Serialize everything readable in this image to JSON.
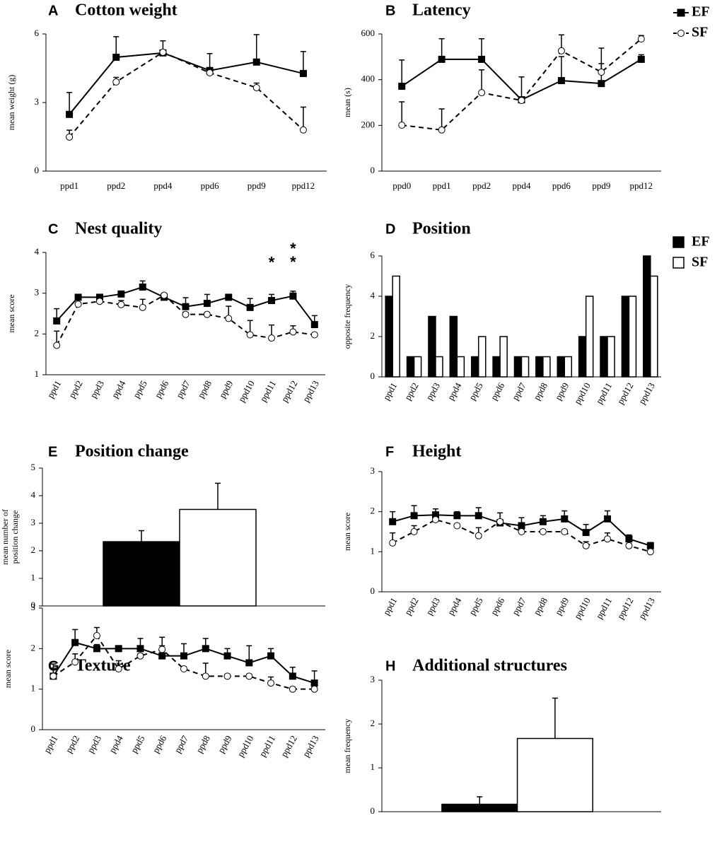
{
  "chart_data": [
    {
      "type": "line",
      "label": "A",
      "title": "Cotton weight",
      "y_label": "mean weight (g)",
      "categories": [
        "ppd1",
        "ppd2",
        "ppd4",
        "ppd6",
        "ppd9",
        "ppd12"
      ],
      "ylim": [
        0,
        6
      ],
      "yticks": [
        0,
        3,
        6
      ],
      "series": [
        {
          "name": "EF",
          "color": "#000000",
          "fill": "#000000",
          "marker": "square",
          "line_style": "solid",
          "values": [
            2.48,
            4.98,
            5.17,
            4.4,
            4.77,
            4.27
          ],
          "errors": [
            0.96,
            0.9,
            0.53,
            0.74,
            1.2,
            0.96
          ]
        },
        {
          "name": "SF",
          "color": "#000000",
          "fill": "#ffffff",
          "marker": "circle",
          "line_style": "dashed",
          "values": [
            1.49,
            3.9,
            5.2,
            4.3,
            3.65,
            1.8
          ],
          "errors": [
            0.3,
            0.2,
            0.05,
            0.05,
            0.2,
            1.0
          ]
        }
      ]
    },
    {
      "type": "line",
      "label": "B",
      "title": "Latency",
      "y_label": "mean (s)",
      "legend": "right",
      "categories": [
        "ppd0",
        "ppd1",
        "ppd2",
        "ppd4",
        "ppd6",
        "ppd9",
        "ppd12"
      ],
      "ylim": [
        0,
        600
      ],
      "yticks": [
        0,
        200,
        400,
        600
      ],
      "series": [
        {
          "name": "EF",
          "color": "#000000",
          "fill": "#000000",
          "marker": "square",
          "line_style": "solid",
          "values": [
            371,
            489,
            489,
            312,
            396,
            383,
            489
          ],
          "errors": [
            115,
            90,
            90,
            100,
            105,
            87,
            20
          ]
        },
        {
          "name": "SF",
          "color": "#000000",
          "fill": "#ffffff",
          "marker": "circle",
          "line_style": "dashed",
          "values": [
            201,
            180,
            343,
            309,
            526,
            433,
            578
          ],
          "errors": [
            102,
            92,
            100,
            10,
            70,
            105,
            15
          ]
        }
      ]
    },
    {
      "type": "line",
      "label": "C",
      "title": "Nest quality",
      "y_label": "mean score",
      "categories": [
        "ppd1",
        "ppd2",
        "ppd3",
        "ppd4",
        "ppd5",
        "ppd6",
        "ppd7",
        "ppd8",
        "ppd9",
        "ppd10",
        "ppd11",
        "ppd12",
        "ppd13"
      ],
      "ylim": [
        1,
        4
      ],
      "yticks": [
        1,
        2,
        3,
        4
      ],
      "annotations": [
        {
          "x": "ppd11",
          "text": "*"
        },
        {
          "x": "ppd12",
          "text": "**"
        }
      ],
      "series": [
        {
          "name": "EF",
          "color": "#000000",
          "fill": "#000000",
          "marker": "square",
          "line_style": "solid",
          "values": [
            2.32,
            2.9,
            2.9,
            2.98,
            3.15,
            2.9,
            2.67,
            2.75,
            2.9,
            2.65,
            2.82,
            2.93,
            2.23
          ],
          "errors": [
            0.3,
            0.05,
            0.05,
            0.05,
            0.15,
            0.05,
            0.22,
            0.22,
            0.05,
            0.22,
            0.15,
            0.12,
            0.22
          ]
        },
        {
          "name": "SF",
          "color": "#000000",
          "fill": "#ffffff",
          "marker": "circle",
          "line_style": "dashed",
          "values": [
            1.72,
            2.73,
            2.8,
            2.72,
            2.65,
            2.95,
            2.48,
            2.48,
            2.38,
            1.98,
            1.9,
            2.05,
            1.98
          ],
          "errors": [
            0.35,
            0.05,
            0.05,
            0.1,
            0.2,
            0.05,
            0.05,
            0.05,
            0.3,
            0.35,
            0.32,
            0.15,
            0.05
          ]
        }
      ]
    },
    {
      "type": "bar",
      "label": "D",
      "title": "Position",
      "y_label": "opposite frequency",
      "legend": "right",
      "categories": [
        "ppd1",
        "ppd2",
        "ppd3",
        "ppd4",
        "ppd5",
        "ppd6",
        "ppd7",
        "ppd8",
        "ppd9",
        "ppd10",
        "ppd11",
        "ppd12",
        "ppd13"
      ],
      "ylim": [
        0,
        6
      ],
      "yticks": [
        0,
        2,
        4,
        6
      ],
      "series": [
        {
          "name": "EF",
          "color": "#000000",
          "fill": "#000000",
          "values": [
            4,
            1,
            3,
            3,
            1,
            1,
            1,
            1,
            1,
            2,
            2,
            4,
            6
          ]
        },
        {
          "name": "SF",
          "color": "#000000",
          "fill": "#ffffff",
          "values": [
            5,
            1,
            1,
            1,
            2,
            2,
            1,
            1,
            1,
            4,
            2,
            4,
            5
          ]
        }
      ]
    },
    {
      "type": "bar",
      "label": "E",
      "title": "Position change",
      "y_label": [
        "mean number of",
        "position change"
      ],
      "ylim": [
        0,
        5
      ],
      "yticks": [
        0,
        1,
        2,
        3,
        4,
        5
      ],
      "series": [
        {
          "name": "EF",
          "color": "#000000",
          "fill": "#000000",
          "values": [
            2.33
          ],
          "errors": [
            0.4
          ]
        },
        {
          "name": "SF",
          "color": "#000000",
          "fill": "#ffffff",
          "values": [
            3.5
          ],
          "errors": [
            0.95
          ]
        }
      ]
    },
    {
      "type": "line",
      "label": "F",
      "title": "Height",
      "y_label": "mean score",
      "categories": [
        "ppd1",
        "ppd2",
        "ppd3",
        "ppd4",
        "ppd5",
        "ppd6",
        "ppd7",
        "ppd8",
        "ppd9",
        "ppd10",
        "ppd11",
        "ppd12",
        "ppd13"
      ],
      "ylim": [
        0,
        3
      ],
      "yticks": [
        0,
        1,
        2,
        3
      ],
      "series": [
        {
          "name": "EF",
          "color": "#000000",
          "fill": "#000000",
          "marker": "square",
          "line_style": "solid",
          "values": [
            1.75,
            1.9,
            1.92,
            1.9,
            1.9,
            1.72,
            1.65,
            1.75,
            1.82,
            1.48,
            1.82,
            1.32,
            1.15
          ],
          "errors": [
            0.25,
            0.25,
            0.15,
            0.1,
            0.2,
            0.25,
            0.2,
            0.15,
            0.2,
            0.2,
            0.2,
            0.1,
            0.08
          ]
        },
        {
          "name": "SF",
          "color": "#000000",
          "fill": "#ffffff",
          "marker": "circle",
          "line_style": "dashed",
          "values": [
            1.22,
            1.5,
            1.8,
            1.65,
            1.4,
            1.75,
            1.5,
            1.5,
            1.5,
            1.15,
            1.32,
            1.15,
            1.0
          ],
          "errors": [
            0.25,
            0.15,
            0.05,
            0.05,
            0.2,
            0.05,
            0.05,
            0.05,
            0.05,
            0.1,
            0.15,
            0.05,
            0.03
          ]
        }
      ]
    },
    {
      "type": "line",
      "label": "G",
      "title": "Texture",
      "y_label": "mean score",
      "categories": [
        "ppd1",
        "ppd2",
        "ppd3",
        "ppd4",
        "ppd5",
        "ppd6",
        "ppd7",
        "ppd8",
        "ppd9",
        "ppd10",
        "ppd11",
        "ppd12",
        "ppd13"
      ],
      "ylim": [
        0,
        3
      ],
      "yticks": [
        0,
        1,
        2,
        3
      ],
      "series": [
        {
          "name": "EF",
          "color": "#000000",
          "fill": "#000000",
          "marker": "square",
          "line_style": "solid",
          "values": [
            1.32,
            2.15,
            2.0,
            2.0,
            2.0,
            1.82,
            1.82,
            2.0,
            1.82,
            1.65,
            1.82,
            1.32,
            1.15
          ],
          "errors": [
            0.3,
            0.32,
            0.1,
            0.05,
            0.25,
            0.25,
            0.3,
            0.25,
            0.18,
            0.42,
            0.18,
            0.22,
            0.3
          ]
        },
        {
          "name": "SF",
          "color": "#000000",
          "fill": "#ffffff",
          "marker": "circle",
          "line_style": "dashed",
          "values": [
            1.32,
            1.67,
            2.32,
            1.5,
            1.82,
            1.98,
            1.5,
            1.32,
            1.32,
            1.32,
            1.15,
            1.0,
            1.0
          ],
          "errors": [
            0.2,
            0.2,
            0.2,
            0.2,
            0.05,
            0.3,
            0.05,
            0.32,
            0.05,
            0.05,
            0.15,
            0.05,
            0.05
          ]
        }
      ]
    },
    {
      "type": "bar",
      "label": "H",
      "title": "Additional structures",
      "y_label": "mean frequency",
      "ylim": [
        0,
        3
      ],
      "yticks": [
        0,
        1,
        2,
        3
      ],
      "series": [
        {
          "name": "EF",
          "color": "#000000",
          "fill": "#000000",
          "values": [
            0.17
          ],
          "errors": [
            0.17
          ]
        },
        {
          "name": "SF",
          "color": "#000000",
          "fill": "#ffffff",
          "values": [
            1.67
          ],
          "errors": [
            0.92
          ]
        }
      ]
    }
  ]
}
